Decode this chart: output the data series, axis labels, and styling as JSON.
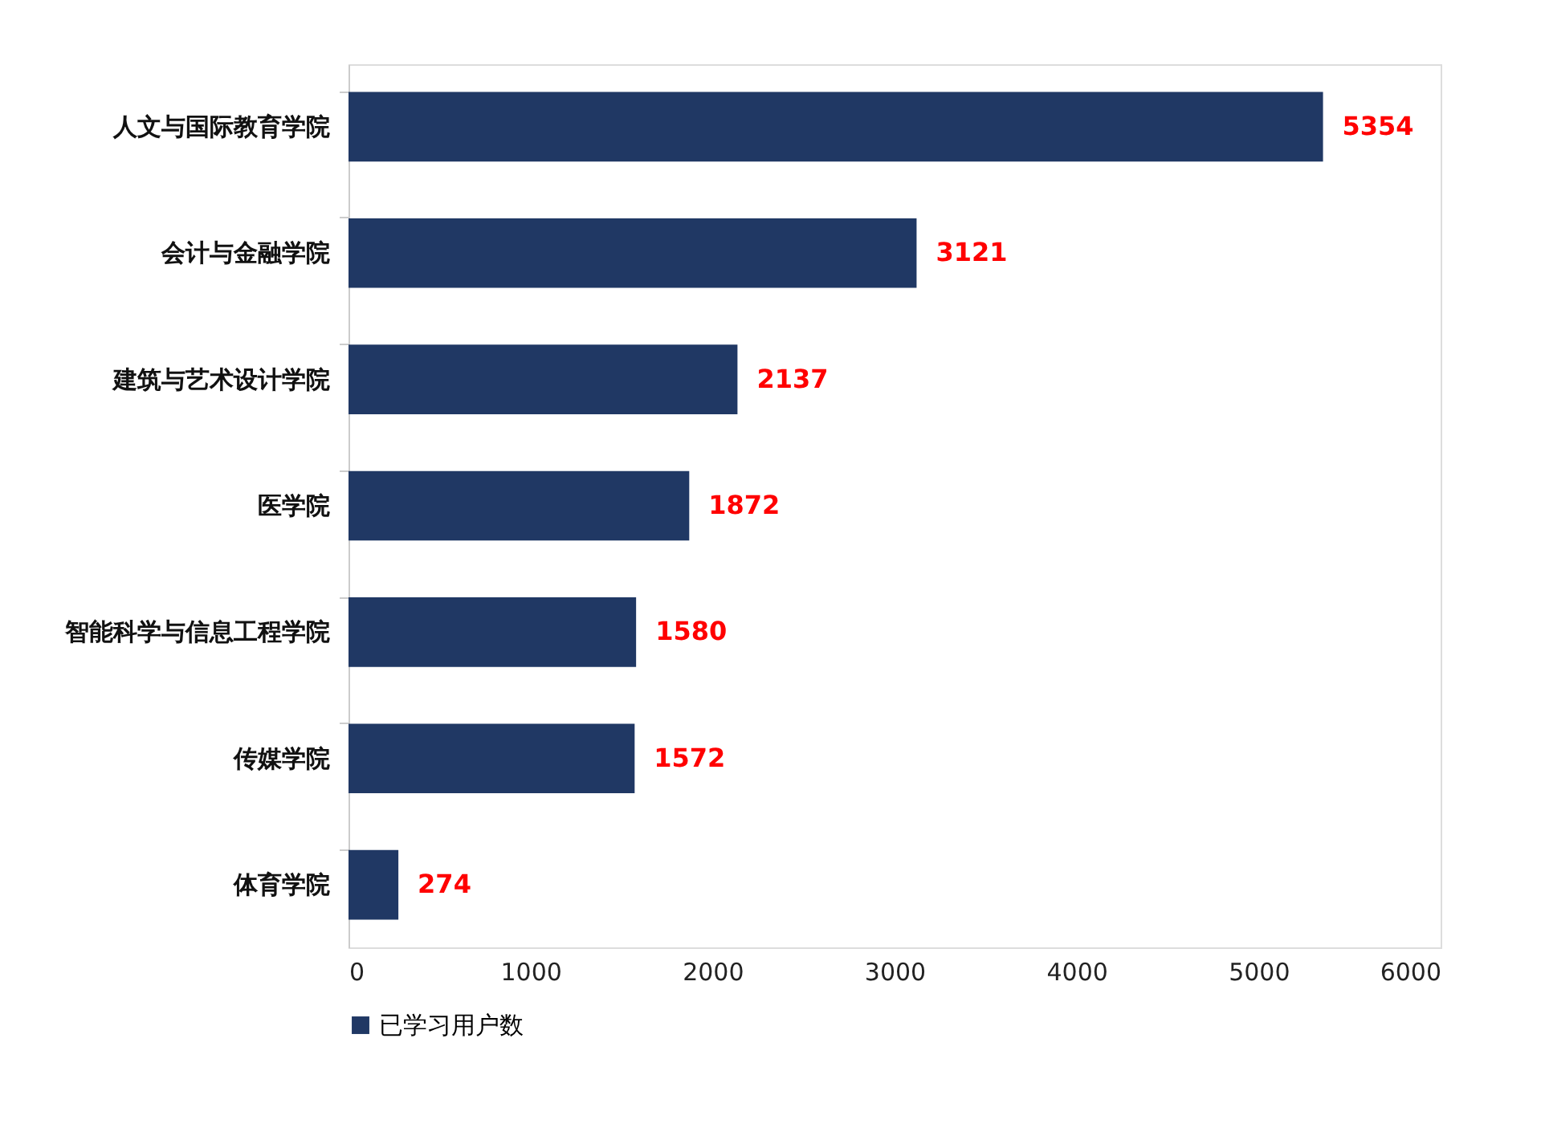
{
  "chart_data": {
    "type": "bar",
    "orientation": "horizontal",
    "categories": [
      "人文与国际教育学院",
      "会计与金融学院",
      "建筑与艺术设计学院",
      "医学院",
      "智能科学与信息工程学院",
      "传媒学院",
      "体育学院"
    ],
    "series": [
      {
        "name": "已学习用户数",
        "color": "#203864",
        "values": [
          5354,
          3121,
          2137,
          1872,
          1580,
          1572,
          274
        ]
      }
    ],
    "xlim": [
      0,
      6000
    ],
    "xticks": [
      0,
      1000,
      2000,
      3000,
      4000,
      5000,
      6000
    ],
    "data_labels": true,
    "grid": false,
    "legend": "bottom"
  }
}
